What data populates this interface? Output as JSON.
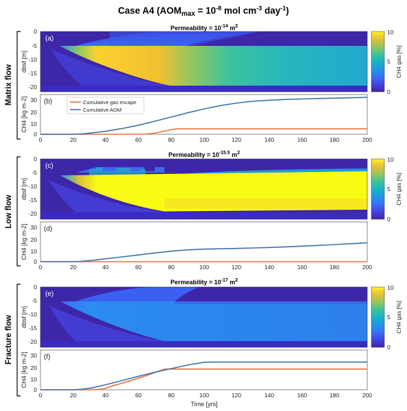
{
  "title": {
    "prefix": "Case A4 (AOM",
    "sub": "max",
    "middle": " = 10",
    "exp1": "-8",
    "mid2": " mol cm",
    "exp2": "-3",
    "mid3": " day",
    "exp3": "-1",
    "suffix": ")"
  },
  "colors": {
    "gas_escape": "#e8703a",
    "aom": "#3d6fa7",
    "blue_dark": "#3b29c8",
    "cmap": [
      "#3e26a8",
      "#4543e0",
      "#3a70f8",
      "#1f98e2",
      "#17b4c6",
      "#3cc39d",
      "#8ec760",
      "#d9c03c",
      "#fbd130",
      "#f9fb15"
    ]
  },
  "groups": [
    {
      "row_label": "Matrix flow",
      "heatmap": {
        "panel_label": "(a)",
        "title_prefix": "Permeability = 10",
        "title_exp": "-14",
        "title_suffix": " m",
        "title_unit_exp": "2",
        "ylabel": "dbsf [m]",
        "colorbar_label": "CH4 gas [%]",
        "colorbar_ticks": [
          "10",
          "5",
          "0"
        ],
        "yticks": [
          "0",
          "-5",
          "-10",
          "-15",
          "-20"
        ]
      },
      "line": {
        "panel_label": "(b)",
        "ylabel": "CH4 [kg m-2]",
        "yticks": [
          "30",
          "20",
          "10",
          "0"
        ],
        "xticks": [
          "0",
          "20",
          "40",
          "60",
          "80",
          "100",
          "120",
          "140",
          "160",
          "180",
          "200"
        ]
      }
    },
    {
      "row_label": "Low flow",
      "heatmap": {
        "panel_label": "(c)",
        "title_prefix": "Permeability = 10",
        "title_exp": "-15.5",
        "title_suffix": " m",
        "title_unit_exp": "2",
        "ylabel": "dbsf [m]",
        "colorbar_label": "CH4 gas [%]",
        "colorbar_ticks": [
          "10",
          "5",
          "0"
        ],
        "yticks": [
          "0",
          "-5",
          "-10",
          "-15",
          "-20"
        ]
      },
      "line": {
        "panel_label": "(d)",
        "ylabel": "CH4 [kg m-2]",
        "yticks": [
          "30",
          "20",
          "10",
          "0"
        ],
        "xticks": [
          "0",
          "20",
          "40",
          "60",
          "80",
          "100",
          "120",
          "140",
          "160",
          "180",
          "200"
        ]
      }
    },
    {
      "row_label": "Fracture flow",
      "heatmap": {
        "panel_label": "(e)",
        "title_prefix": "Permeability = 10",
        "title_exp": "-17",
        "title_suffix": " m",
        "title_unit_exp": "2",
        "ylabel": "dbsf [m]",
        "colorbar_label": "CH4 gas [%]",
        "colorbar_ticks": [
          "10",
          "5",
          "0"
        ],
        "yticks": [
          "0",
          "-5",
          "-10",
          "-15",
          "-20"
        ]
      },
      "line": {
        "panel_label": "(f)",
        "ylabel": "CH4 [kg m-2]",
        "yticks": [
          "30",
          "20",
          "10",
          "0"
        ],
        "xticks": [
          "0",
          "20",
          "40",
          "60",
          "80",
          "100",
          "120",
          "140",
          "160",
          "180",
          "200"
        ]
      }
    }
  ],
  "legend": {
    "items": [
      {
        "label": "Cumulative gas escape",
        "color": "#e8703a"
      },
      {
        "label": "Cumulative AOM",
        "color": "#3d6fa7"
      }
    ]
  },
  "xlabel": "Time [yrs]",
  "chart_data": [
    {
      "type": "heatmap",
      "title": "Permeability = 10^-14 m^2",
      "panel": "(a)",
      "xlim": [
        0,
        200
      ],
      "ylim": [
        -22,
        0
      ],
      "xlabel": "",
      "ylabel": "dbsf [m]",
      "colorbar": {
        "label": "CH4 gas [%]",
        "range": [
          0,
          10
        ]
      },
      "description_values": {
        "peak_gas_percent": 9,
        "peak_time_yrs": 50,
        "late_gas_percent": 5
      }
    },
    {
      "type": "line",
      "panel": "(b)",
      "xlim": [
        0,
        200
      ],
      "ylim": [
        0,
        33
      ],
      "ylabel": "CH4 [kg m-2]",
      "xlabel": "",
      "series": [
        {
          "name": "Cumulative gas escape",
          "x": [
            0,
            62,
            68,
            72,
            78,
            82,
            85,
            120,
            160,
            200
          ],
          "y": [
            0,
            0,
            0.5,
            1.5,
            3.2,
            4.3,
            4.5,
            4.5,
            4.5,
            4.5
          ]
        },
        {
          "name": "Cumulative AOM",
          "x": [
            0,
            10,
            20,
            25,
            30,
            40,
            50,
            60,
            70,
            80,
            90,
            100,
            110,
            120,
            130,
            140,
            150,
            160,
            170,
            180,
            190,
            200
          ],
          "y": [
            0,
            0,
            0,
            0.3,
            0.9,
            2.5,
            4.8,
            7.5,
            10.8,
            14.3,
            17.8,
            21.0,
            23.8,
            25.9,
            27.4,
            28.3,
            28.9,
            29.3,
            29.7,
            30.0,
            30.3,
            30.6
          ]
        }
      ]
    },
    {
      "type": "heatmap",
      "title": "Permeability = 10^-15.5 m^2",
      "panel": "(c)",
      "xlim": [
        0,
        200
      ],
      "ylim": [
        -22,
        0
      ],
      "ylabel": "dbsf [m]",
      "colorbar": {
        "label": "CH4 gas [%]",
        "range": [
          0,
          10
        ]
      }
    },
    {
      "type": "line",
      "panel": "(d)",
      "xlim": [
        0,
        200
      ],
      "ylim": [
        0,
        33
      ],
      "ylabel": "CH4 [kg m-2]",
      "series": [
        {
          "name": "Cumulative gas escape",
          "x": [
            0,
            200
          ],
          "y": [
            0,
            0
          ]
        },
        {
          "name": "Cumulative AOM",
          "x": [
            0,
            20,
            25,
            30,
            40,
            50,
            60,
            70,
            80,
            90,
            100,
            110,
            120,
            130,
            140,
            150,
            160,
            170,
            180,
            190,
            200
          ],
          "y": [
            0,
            0,
            0.3,
            0.9,
            2.4,
            4.0,
            5.6,
            7.2,
            8.7,
            9.8,
            10.4,
            10.7,
            11.0,
            11.4,
            11.8,
            12.3,
            12.9,
            13.5,
            14.2,
            14.9,
            15.7
          ]
        }
      ]
    },
    {
      "type": "heatmap",
      "title": "Permeability = 10^-17 m^2",
      "panel": "(e)",
      "xlim": [
        0,
        200
      ],
      "ylim": [
        -22,
        0
      ],
      "ylabel": "dbsf [m]",
      "colorbar": {
        "label": "CH4 gas [%]",
        "range": [
          0,
          10
        ]
      }
    },
    {
      "type": "line",
      "panel": "(f)",
      "xlim": [
        0,
        200
      ],
      "ylim": [
        0,
        33
      ],
      "xlabel": "Time [yrs]",
      "ylabel": "CH4 [kg m-2]",
      "series": [
        {
          "name": "Cumulative gas escape",
          "x": [
            0,
            30,
            38,
            45,
            55,
            65,
            72,
            76,
            80,
            120,
            160,
            200
          ],
          "y": [
            0,
            0,
            0.5,
            3.5,
            7.5,
            11.8,
            15.2,
            17.2,
            17.2,
            17.2,
            17.2,
            17.2
          ]
        },
        {
          "name": "Cumulative AOM",
          "x": [
            0,
            20,
            25,
            30,
            40,
            50,
            60,
            70,
            80,
            90,
            100,
            104,
            120,
            160,
            200
          ],
          "y": [
            0,
            0,
            0.4,
            1.2,
            4.2,
            7.7,
            11.2,
            14.5,
            17.6,
            20.5,
            22.8,
            23.0,
            23.0,
            23.0,
            23.0
          ]
        }
      ]
    }
  ]
}
